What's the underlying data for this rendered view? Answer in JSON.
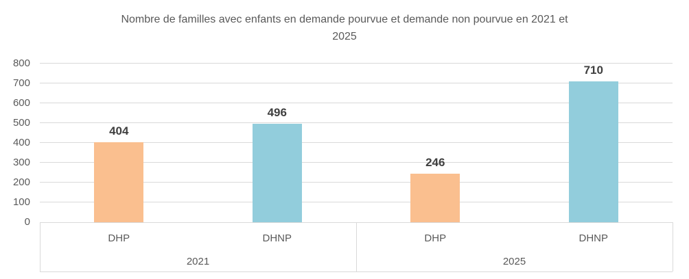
{
  "chart_data": {
    "type": "bar",
    "title": "Nombre de familles avec enfants en demande pourvue et demande non pourvue en 2021 et 2025",
    "title_lines": [
      "Nombre de familles avec enfants en demande pourvue et demande non pourvue en 2021 et",
      "2025"
    ],
    "ylim": [
      0,
      800
    ],
    "ytick_step": 100,
    "grid": true,
    "legend": false,
    "axis_levels": [
      "category",
      "year"
    ],
    "groups": [
      {
        "label": "2021",
        "categories": [
          "DHP",
          "DHNP"
        ],
        "values": [
          404,
          496
        ]
      },
      {
        "label": "2025",
        "categories": [
          "DHP",
          "DHNP"
        ],
        "values": [
          246,
          710
        ]
      }
    ],
    "series_colors": {
      "DHP": "#FABF8F",
      "DHNP": "#92CDDC"
    },
    "colors": {
      "grid": "#D9D9D9",
      "axis_text": "#595959",
      "title": "#595959",
      "data_label": "#3F3F3F",
      "background": "#FFFFFF"
    }
  }
}
